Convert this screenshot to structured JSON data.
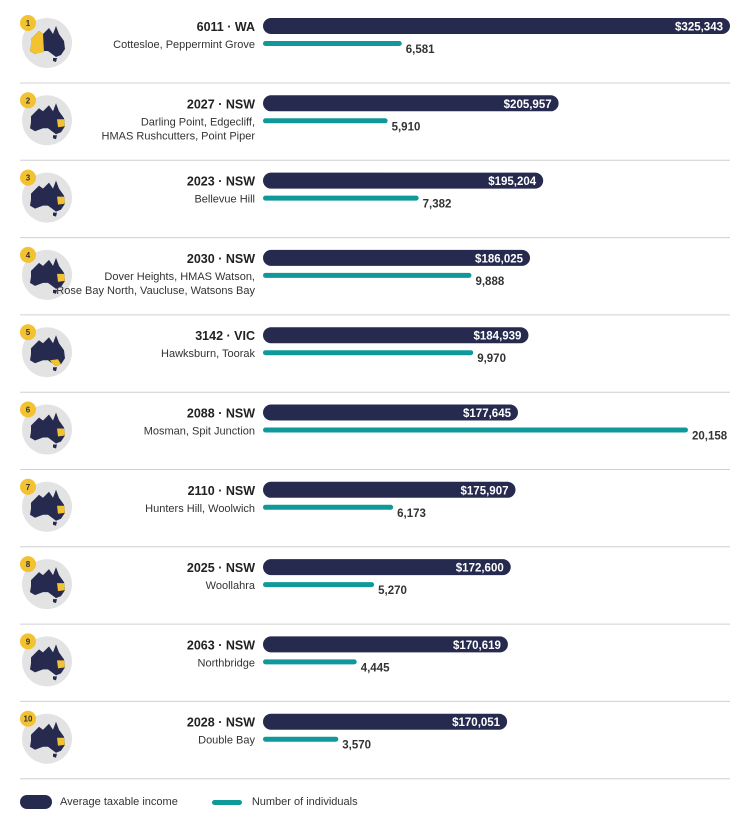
{
  "colors": {
    "income_bar": "#262a4f",
    "count_bar": "#10999a",
    "map_land": "#262a4f",
    "map_highlight": "#f2c230",
    "badge": "#f2c230",
    "circle_bg": "#e3e3e3",
    "divider": "#d0d0d0"
  },
  "legend": {
    "income": "Average taxable income",
    "count": "Number of individuals"
  },
  "chart_data": {
    "type": "bar",
    "orientation": "horizontal",
    "legend_position": "bottom-left",
    "series": [
      {
        "name": "Average taxable income",
        "values": [
          325343,
          205957,
          195204,
          186025,
          184939,
          177645,
          175907,
          172600,
          170619,
          170051
        ]
      },
      {
        "name": "Number of individuals",
        "values": [
          6581,
          5910,
          7382,
          9888,
          9970,
          20158,
          6173,
          5270,
          4445,
          3570
        ]
      }
    ],
    "rows": [
      {
        "rank": "1",
        "postcode": "6011",
        "state": "WA",
        "suburbs": [
          "Cottesloe, Peppermint Grove"
        ],
        "income": 325343,
        "income_label": "$325,343",
        "individuals": 6581,
        "individuals_label": "6,581",
        "map_icon": "australia-map-wa-icon"
      },
      {
        "rank": "2",
        "postcode": "2027",
        "state": "NSW",
        "suburbs": [
          "Darling Point, Edgecliff,",
          "HMAS Rushcutters, Point Piper"
        ],
        "income": 205957,
        "income_label": "$205,957",
        "individuals": 5910,
        "individuals_label": "5,910",
        "map_icon": "australia-map-nsw-icon"
      },
      {
        "rank": "3",
        "postcode": "2023",
        "state": "NSW",
        "suburbs": [
          "Bellevue Hill"
        ],
        "income": 195204,
        "income_label": "$195,204",
        "individuals": 7382,
        "individuals_label": "7,382",
        "map_icon": "australia-map-nsw-icon"
      },
      {
        "rank": "4",
        "postcode": "2030",
        "state": "NSW",
        "suburbs": [
          "Dover Heights, HMAS Watson,",
          "Rose Bay North, Vaucluse, Watsons Bay"
        ],
        "income": 186025,
        "income_label": "$186,025",
        "individuals": 9888,
        "individuals_label": "9,888",
        "map_icon": "australia-map-nsw-icon"
      },
      {
        "rank": "5",
        "postcode": "3142",
        "state": "VIC",
        "suburbs": [
          "Hawksburn, Toorak"
        ],
        "income": 184939,
        "income_label": "$184,939",
        "individuals": 9970,
        "individuals_label": "9,970",
        "map_icon": "australia-map-vic-icon"
      },
      {
        "rank": "6",
        "postcode": "2088",
        "state": "NSW",
        "suburbs": [
          "Mosman, Spit Junction"
        ],
        "income": 177645,
        "income_label": "$177,645",
        "individuals": 20158,
        "individuals_label": "20,158",
        "map_icon": "australia-map-nsw-icon"
      },
      {
        "rank": "7",
        "postcode": "2110",
        "state": "NSW",
        "suburbs": [
          "Hunters Hill, Woolwich"
        ],
        "income": 175907,
        "income_label": "$175,907",
        "individuals": 6173,
        "individuals_label": "6,173",
        "map_icon": "australia-map-nsw-icon"
      },
      {
        "rank": "8",
        "postcode": "2025",
        "state": "NSW",
        "suburbs": [
          "Woollahra"
        ],
        "income": 172600,
        "income_label": "$172,600",
        "individuals": 5270,
        "individuals_label": "5,270",
        "map_icon": "australia-map-nsw-icon"
      },
      {
        "rank": "9",
        "postcode": "2063",
        "state": "NSW",
        "suburbs": [
          "Northbridge"
        ],
        "income": 170619,
        "income_label": "$170,619",
        "individuals": 4445,
        "individuals_label": "4,445",
        "map_icon": "australia-map-nsw-icon"
      },
      {
        "rank": "10",
        "postcode": "2028",
        "state": "NSW",
        "suburbs": [
          "Double Bay"
        ],
        "income": 170051,
        "income_label": "$170,051",
        "individuals": 3570,
        "individuals_label": "3,570",
        "map_icon": "australia-map-nsw-icon"
      }
    ]
  }
}
